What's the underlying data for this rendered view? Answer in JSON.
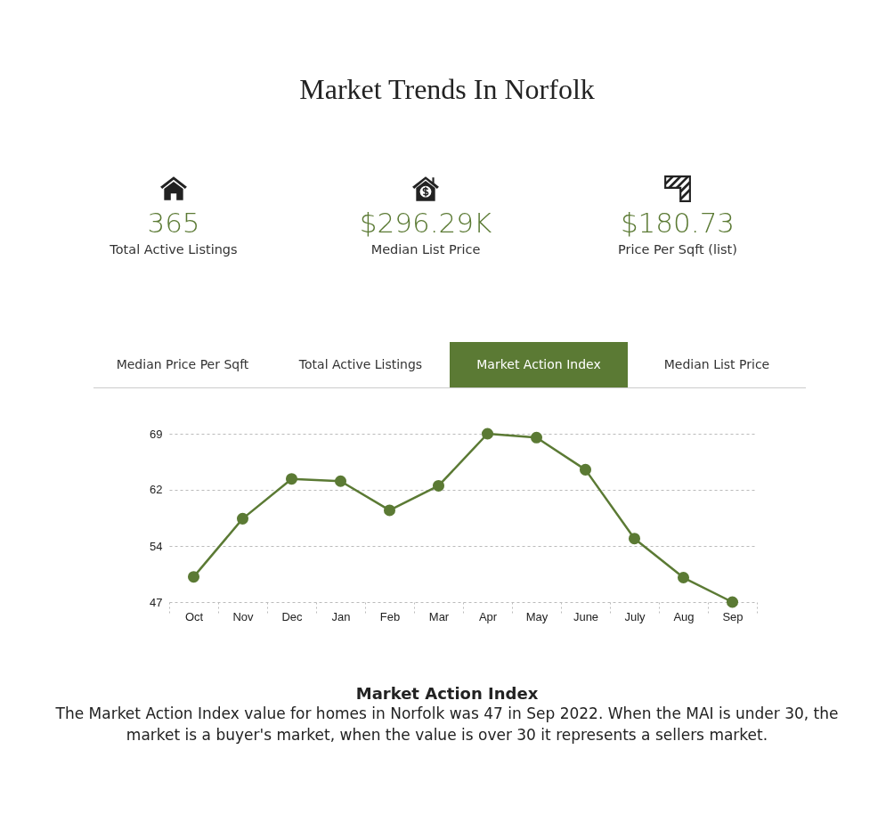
{
  "chart_data": [
    {
      "type": "other",
      "title": "Market Trends In Norfolk",
      "annotations": [
        "365",
        "Total Active Listings",
        "$296.29K",
        "Median List Price",
        "$180.73",
        "Price Per Sqft (list)"
      ]
    },
    {
      "type": "line",
      "title": "Market Action Index",
      "annotations": [
        "Median Price Per Sqft",
        "Total Active Listings",
        "Market Action Index",
        "Median List Price",
        "The Market Action Index value for homes in Norfolk was 47 in Sep 2022. When the MAI is under 30, the market is a buyer's market, when the value is over 30 it represents a sellers market."
      ],
      "categories": [
        "Oct",
        "Nov",
        "Dec",
        "Jan",
        "Feb",
        "Mar",
        "Apr",
        "May",
        "June",
        "July",
        "Aug",
        "Sep"
      ],
      "series": [
        {
          "color": "#5b7a34",
          "values": [
            50.3,
            57.9,
            63.1,
            62.8,
            59.0,
            62.2,
            69.0,
            68.5,
            64.3,
            55.3,
            50.2,
            47.0
          ]
        }
      ],
      "ylim": [
        47,
        69
      ],
      "yticks": [
        47,
        {
          "value": 54.33,
          "label": "54"
        },
        {
          "value": 61.67,
          "label": "62"
        },
        69
      ],
      "grid": "y",
      "marker": "circle",
      "line_style": "solid"
    }
  ]
}
